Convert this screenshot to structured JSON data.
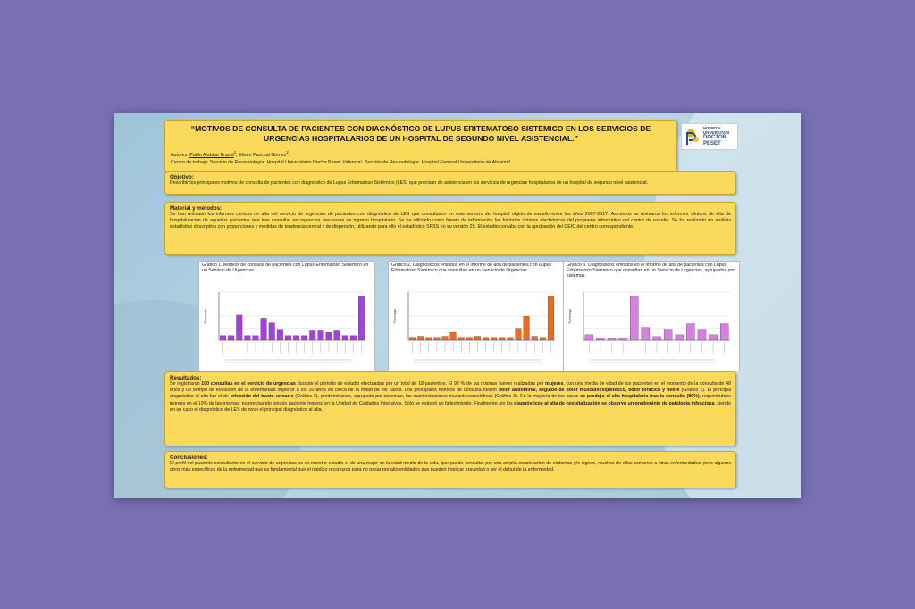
{
  "title": "“MOTIVOS DE CONSULTA DE PACIENTES CON DIAGNÓSTICO DE LUPUS ERITEMATOSO SISTÉMICO EN LOS SERVICIOS DE URGENCIAS HOSPITALARIOS DE UN HOSPITAL DE SEGUNDO NIVEL ASISTENCIAL.”",
  "authors": {
    "label": "Autores:",
    "author1": "Pablo Andújar Brazal",
    "author1_sup": "1",
    "sep": ", Eliseo Pascual Gómez",
    "author2_sup": "2",
    "end": "."
  },
  "centro": "Centro de trabajo: Servicio de Reumatología. Hospital Universitario Doctor Peset. Valencia¹. Sección de Reumatología. Hospital General Universitario de Alicante².",
  "logo": {
    "line1": "HOSPITAL UNIVERSITARI",
    "line2": "DOCTOR PESET"
  },
  "objetivo": {
    "heading": "Objetivo:",
    "text": "Describir los principales motivos de consulta de pacientes con diagnóstico de Lupus Eritematoso Sistémico (LES) que precisan de asistencia en los servicios de urgencias hospitalarios de un hospital de segundo nivel asistencial."
  },
  "metodos": {
    "heading": "Material y métodos:",
    "text": "Se han revisado los informes clínicos de alta del servicio de urgencias de pacientes con diagnóstico de LES que consultaron en este servicio del hospital objeto de estudio entre los años 2007-2017. Asimismo se revisaron los informes clínicos de alta de hospitalización de aquellos pacientes que tras consultar en urgencias precisaran de ingreso hospitalario. Se ha utilizado como fuente de información las historias clínicas electrónicas del programa informático del centro de estudio. Se ha realizado un análisis estadístico descriptivo con proporciones y medidas de tendencia central y de dispersión, utilizando para ello el estadístico SPSS en su versión 25. El estudio contaba con la aprobación del CEIC del centro correspondiente."
  },
  "figures": [
    {
      "caption": "Gráfico 1. Motivos de consulta de pacientes con Lupus Eritematoso Sistémico en un Servicio de Urgencias."
    },
    {
      "caption": "Gráfico 2. Diagnósticos emitidos en el informe de alta de pacientes con Lupus Eritematoso Sistémico que consultan en un Servicio de Urgencias."
    },
    {
      "caption": "Gráfico 3. Diagnósticos emitidos en el informe de alta de pacientes con Lupus Eritematoso Sistémico que consultan en un Servicio de Urgencias, agrupados por sistemas."
    }
  ],
  "chart_data": [
    {
      "type": "bar",
      "ylabel": "Porcentaje",
      "color": "#a540e0",
      "values": [
        3,
        3,
        16,
        3,
        3,
        14,
        11,
        7,
        3,
        3,
        3,
        6,
        6,
        5,
        6,
        3,
        3,
        28
      ]
    },
    {
      "type": "bar",
      "ylabel": "Porcentaje",
      "color": "#f06a1a",
      "values": [
        1.5,
        2,
        1.5,
        1.5,
        2,
        4,
        1.5,
        1.5,
        2,
        1.5,
        1.5,
        1.5,
        1.5,
        6,
        12,
        2,
        1.5,
        22
      ]
    },
    {
      "type": "bar",
      "ylabel": "Porcentaje",
      "color": "#d880e0",
      "values": [
        3,
        1,
        1,
        1,
        24,
        7,
        2,
        6,
        3,
        9,
        6,
        3,
        9
      ]
    }
  ],
  "resultados": {
    "heading": "Resultados:",
    "p1": "Se registraron ",
    "b1": "100 consultas en el servicio de urgencias",
    "p2": " durante el periodo de estudio efectuadas por un total de 18 pacientes. El 92 % de las mismas fueron realizadas por ",
    "b2": "mujeres",
    "p3": ", con una media de edad de los pacientes en el momento de la consulta de 48 años y un tiempo de evolución de la enfermedad superior a los 10 años en cerca de la mitad de los casos. Los principales motivos de consulta fueron ",
    "b3": "dolor abdominal, seguido de dolor musculoesquelético, dolor torácico y fiebre",
    "p4": " (Gráfico 1). El principal diagnóstico al alta fue el de ",
    "b4": "infección del tracto urinario",
    "p5": " (Gráfico 2), predominando, agrupado por sistemas, las manifestaciones musculoesqueléticas (Gráfico 3). En la mayoría de los casos ",
    "b5": "se produjo el alta hospitalaria tras la consulta (80%)",
    "p6": ", requiriéndose ingreso en el 19% de las mismas, no precisando ningún paciente ingreso en la Unidad de Cuidados Intensivos. Sólo se registró un fallecimiento. Finalmente, en los ",
    "b6": "diagnósticos al alta de hospitalización se observó un predominio de patología infecciosa",
    "p7": ", siendo en un caso el diagnóstico de LES de novo el principal diagnóstico al alta."
  },
  "conclusiones": {
    "heading": "Conclusiones:",
    "text": "El perfil del paciente consultante en el servicio de urgencias es en nuestro estudio el de una mujer en la edad media de la vida, que puede consultar por una amplia constelación de síntomas y/o signos, muchos de ellos comunes a otras enfermedades, pero algunos otros más específicos de la enfermedad que es fundamental que el médico reconozca para no pasar por alto entidades que pueden implicar gravedad o ser el debut de la enfermedad."
  }
}
